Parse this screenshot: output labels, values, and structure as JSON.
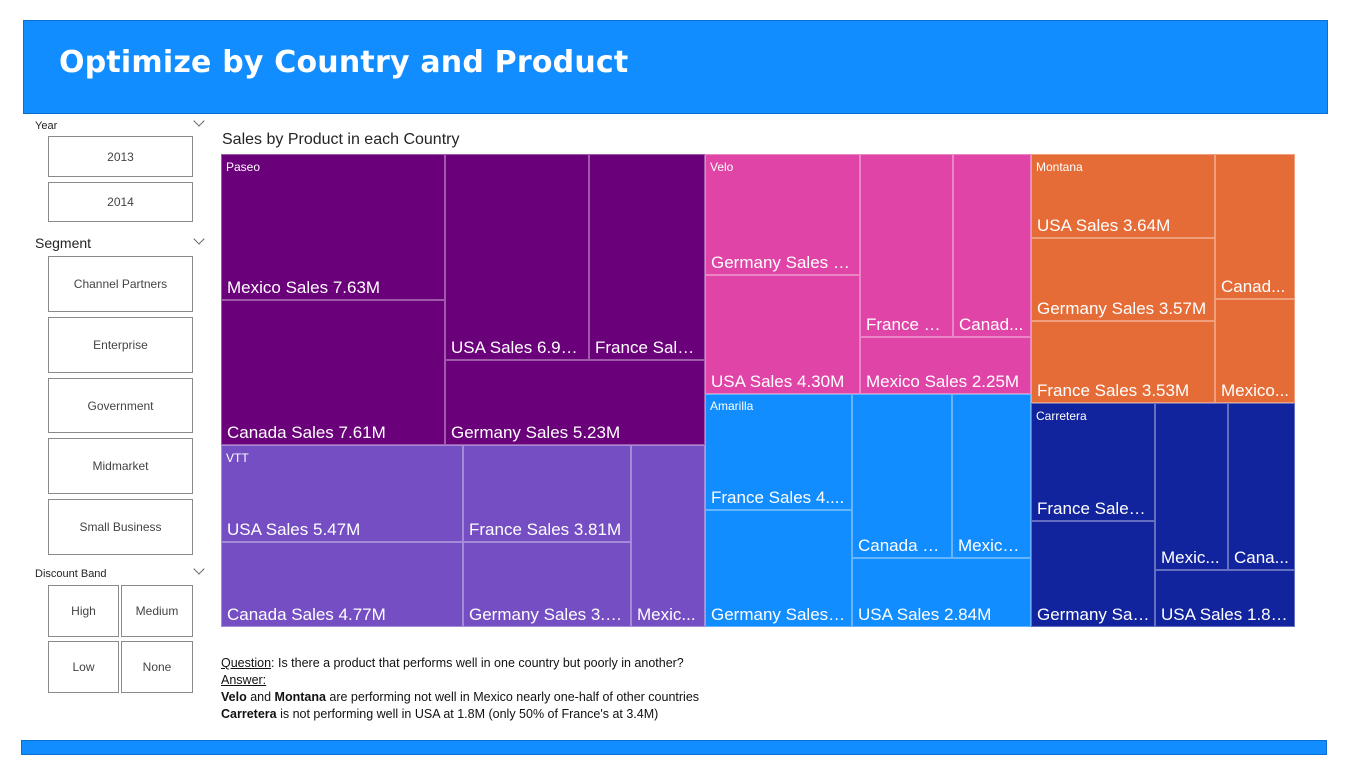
{
  "header": {
    "title": "Optimize by Country and Product"
  },
  "slicers": {
    "year": {
      "title": "Year",
      "items": [
        "2013",
        "2014"
      ]
    },
    "segment": {
      "title": "Segment",
      "items": [
        "Channel Partners",
        "Enterprise",
        "Government",
        "Midmarket",
        "Small Business"
      ]
    },
    "discount": {
      "title": "Discount Band",
      "items": [
        "High",
        "Medium",
        "Low",
        "None"
      ]
    }
  },
  "chart_data": {
    "type": "treemap",
    "title": "Sales by Product in each Country",
    "groups": [
      {
        "name": "Paseo",
        "color": "#6b007b",
        "items": [
          {
            "label": "Mexico Sales 7.63M",
            "country": "Mexico",
            "value": 7.63
          },
          {
            "label": "Canada Sales 7.61M",
            "country": "Canada",
            "value": 7.61
          },
          {
            "label": "USA Sales 6.94M",
            "country": "USA",
            "value": 6.94
          },
          {
            "label": "France Sale...",
            "country": "France",
            "value": 5.1
          },
          {
            "label": "Germany Sales 5.23M",
            "country": "Germany",
            "value": 5.23
          }
        ]
      },
      {
        "name": "VTT",
        "color": "#744ec2",
        "items": [
          {
            "label": "USA Sales 5.47M",
            "country": "USA",
            "value": 5.47
          },
          {
            "label": "Canada Sales 4.77M",
            "country": "Canada",
            "value": 4.77
          },
          {
            "label": "France Sales 3.81M",
            "country": "France",
            "value": 3.81
          },
          {
            "label": "Germany Sales 3.2...",
            "country": "Germany",
            "value": 3.2
          },
          {
            "label": "Mexic...",
            "country": "Mexico",
            "value": 2.1
          }
        ]
      },
      {
        "name": "Velo",
        "color": "#e044a7",
        "items": [
          {
            "label": "Germany Sales 4...",
            "country": "Germany",
            "value": 4.4
          },
          {
            "label": "USA Sales 4.30M",
            "country": "USA",
            "value": 4.3
          },
          {
            "label": "France S...",
            "country": "France",
            "value": 3.4
          },
          {
            "label": "Canad...",
            "country": "Canada",
            "value": 3.0
          },
          {
            "label": "Mexico Sales 2.25M",
            "country": "Mexico",
            "value": 2.25
          }
        ]
      },
      {
        "name": "Amarilla",
        "color": "#118dff",
        "items": [
          {
            "label": "France Sales 4....",
            "country": "France",
            "value": 4.2
          },
          {
            "label": "Germany Sales ...",
            "country": "Germany",
            "value": 4.0
          },
          {
            "label": "Canada S...",
            "country": "Canada",
            "value": 3.1
          },
          {
            "label": "Mexico...",
            "country": "Mexico",
            "value": 2.7
          },
          {
            "label": "USA Sales 2.84M",
            "country": "USA",
            "value": 2.84
          }
        ]
      },
      {
        "name": "Montana",
        "color": "#e66c37",
        "items": [
          {
            "label": "USA Sales 3.64M",
            "country": "USA",
            "value": 3.64
          },
          {
            "label": "Germany Sales 3.57M",
            "country": "Germany",
            "value": 3.57
          },
          {
            "label": "France Sales 3.53M",
            "country": "France",
            "value": 3.53
          },
          {
            "label": "Canad...",
            "country": "Canada",
            "value": 2.3
          },
          {
            "label": "Mexico...",
            "country": "Mexico",
            "value": 1.9
          }
        ]
      },
      {
        "name": "Carretera",
        "color": "#12239e",
        "items": [
          {
            "label": "France Sales ...",
            "country": "France",
            "value": 3.4
          },
          {
            "label": "Germany Sal...",
            "country": "Germany",
            "value": 3.0
          },
          {
            "label": "Mexic...",
            "country": "Mexico",
            "value": 2.4
          },
          {
            "label": "Cana...",
            "country": "Canada",
            "value": 2.1
          },
          {
            "label": "USA Sales 1.84...",
            "country": "USA",
            "value": 1.84
          }
        ]
      }
    ]
  },
  "qa": {
    "question_label": "Question",
    "question_text": ": Is there a product that performs well in one country but poorly in another?",
    "answer_label": "Answer:",
    "line1_bold1": "Velo",
    "line1_and": " and ",
    "line1_bold2": "Montana",
    "line1_rest": " are performing not well in Mexico nearly one-half of other countries",
    "line2_bold": "Carretera",
    "line2_rest": " is not performing well in USA at 1.8M (only 50% of France's at 3.4M)"
  }
}
